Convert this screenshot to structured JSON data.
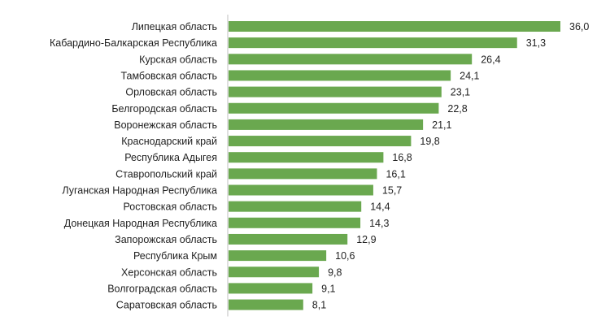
{
  "chart_data": {
    "type": "bar",
    "orientation": "horizontal",
    "categories": [
      "Липецкая область",
      "Кабардино-Балкарская Республика",
      "Курская область",
      "Тамбовская область",
      "Орловская область",
      "Белгородская область",
      "Воронежская область",
      "Краснодарский край",
      "Республика Адыгея",
      "Ставропольский край",
      "Луганская Народная Республика",
      "Ростовская область",
      "Донецкая Народная Республика",
      "Запорожская область",
      "Республика Крым",
      "Херсонская область",
      "Волгоградская область",
      "Саратовская область"
    ],
    "values": [
      36.0,
      31.3,
      26.4,
      24.1,
      23.1,
      22.8,
      21.1,
      19.8,
      16.8,
      16.1,
      15.7,
      14.4,
      14.3,
      12.9,
      10.6,
      9.8,
      9.1,
      8.1
    ],
    "value_labels": [
      "36,0",
      "31,3",
      "26,4",
      "24,1",
      "23,1",
      "22,8",
      "21,1",
      "19,8",
      "16,8",
      "16,1",
      "15,7",
      "14,4",
      "14,3",
      "12,9",
      "10,6",
      "9,8",
      "9,1",
      "8,1"
    ],
    "title": "",
    "xlabel": "",
    "ylabel": "",
    "xlim": [
      0,
      36.0
    ],
    "grid": false,
    "bar_color": "#6aa84f",
    "axis_color": "#bfbfbf"
  }
}
